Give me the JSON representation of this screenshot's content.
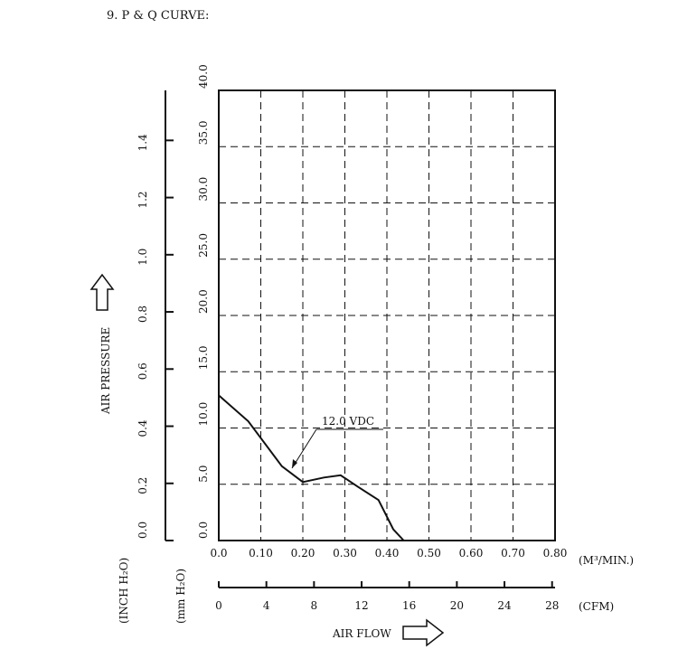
{
  "section_title": "9. P & Q CURVE:",
  "chart_data": {
    "type": "line",
    "x_unit_label": "(M³/MIN.)",
    "x_ticks": [
      "0.0",
      "0.10",
      "0.20",
      "0.30",
      "0.40",
      "0.50",
      "0.60",
      "0.70",
      "0.80"
    ],
    "x_range": [
      0,
      0.8
    ],
    "x2_unit_label": "(CFM)",
    "x2_ticks": [
      "0",
      "4",
      "8",
      "12",
      "16",
      "20",
      "24",
      "28"
    ],
    "x2_range": [
      0,
      28.25
    ],
    "y_unit_label": "(mm H₂O)",
    "y_ticks": [
      "0.0",
      "5.0",
      "10.0",
      "15.0",
      "20.0",
      "25.0",
      "30.0",
      "35.0",
      "40.0"
    ],
    "y_range": [
      0,
      40
    ],
    "y2_unit_label": "(INCH H₂O)",
    "y2_ticks": [
      "0.0",
      "0.2",
      "0.4",
      "0.6",
      "0.8",
      "1.0",
      "1.2",
      "1.4"
    ],
    "y2_range": [
      0,
      1.575
    ],
    "y_axis_title": "AIR PRESSURE",
    "x_axis_title": "AIR FLOW",
    "grid": true,
    "series": [
      {
        "name": "12.0 VDC",
        "x": [
          0.0,
          0.07,
          0.15,
          0.2,
          0.25,
          0.29,
          0.33,
          0.38,
          0.415,
          0.44
        ],
        "y": [
          12.9,
          10.6,
          6.6,
          5.2,
          5.6,
          5.8,
          4.8,
          3.6,
          1.0,
          0.0
        ]
      }
    ],
    "annotation": "12.0 VDC"
  }
}
